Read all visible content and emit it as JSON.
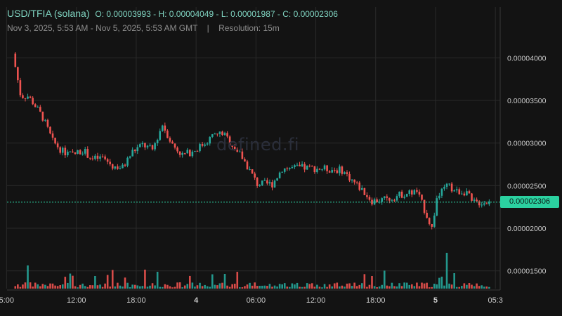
{
  "header": {
    "symbol": "USD/TFIA (solana)",
    "ohlc": "O: 0.00003993 - H: 0.00004049 - L: 0.00001987 - C: 0.00002306",
    "range": "Nov 3, 2025, 5:53 AM - Nov 5, 2025, 5:53 AM GMT",
    "separator": "|",
    "resolution": "Resolution: 15m"
  },
  "watermark": "defined.fi",
  "last_price_label": "0.00002306",
  "colors": {
    "up": "#26a69a",
    "down": "#ef5350",
    "background": "#131313",
    "grid": "#2a2a2a",
    "last_price": "#2bd1a0"
  },
  "chart_data": {
    "type": "candlestick",
    "title": "USD/TFIA (solana)",
    "resolution": "15m",
    "y_ticks": [
      "0.00004000",
      "0.00003500",
      "0.00003000",
      "0.00002500",
      "0.00002000",
      "0.00001500"
    ],
    "y_tick_values": [
      4e-05,
      3.5e-05,
      3e-05,
      2.5e-05,
      2e-05,
      1.5e-05
    ],
    "x_ticks": [
      "5:00",
      "12:00",
      "18:00",
      "4",
      "06:00",
      "12:00",
      "18:00",
      "5",
      "05:3"
    ],
    "x_tick_hours": [
      -0.88,
      6.12,
      12.12,
      18.12,
      24.12,
      30.12,
      36.12,
      42.12,
      48.12
    ],
    "ylim": [
      1.3e-05,
      4.25e-05
    ],
    "xlim_hours": [
      -0.83,
      48.6
    ],
    "last_price": 2.306e-05,
    "grid": true,
    "price_path": [
      [
        0,
        4.049e-05
      ],
      [
        0.8,
        3.55e-05
      ],
      [
        1.5,
        3.55e-05
      ],
      [
        2.0,
        3.48e-05
      ],
      [
        3.0,
        3.3e-05
      ],
      [
        4.0,
        3.02e-05
      ],
      [
        5.0,
        2.9e-05
      ],
      [
        6.0,
        2.86e-05
      ],
      [
        7.0,
        2.92e-05
      ],
      [
        8.0,
        2.81e-05
      ],
      [
        9.0,
        2.83e-05
      ],
      [
        10.0,
        2.73e-05
      ],
      [
        11.0,
        2.71e-05
      ],
      [
        12.0,
        2.9e-05
      ],
      [
        13.0,
        2.98e-05
      ],
      [
        14.0,
        2.92e-05
      ],
      [
        15.0,
        3.22e-05
      ],
      [
        16.0,
        2.98e-05
      ],
      [
        17.0,
        2.86e-05
      ],
      [
        18.0,
        2.9e-05
      ],
      [
        19.0,
        2.98e-05
      ],
      [
        20.0,
        3.08e-05
      ],
      [
        21.0,
        3.12e-05
      ],
      [
        22.0,
        2.98e-05
      ],
      [
        23.0,
        2.83e-05
      ],
      [
        24.5,
        2.52e-05
      ],
      [
        26.0,
        2.52e-05
      ],
      [
        27.0,
        2.7e-05
      ],
      [
        29.0,
        2.71e-05
      ],
      [
        31.0,
        2.7e-05
      ],
      [
        33.0,
        2.68e-05
      ],
      [
        35.0,
        2.45e-05
      ],
      [
        36.0,
        2.32e-05
      ],
      [
        37.5,
        2.34e-05
      ],
      [
        39.0,
        2.4e-05
      ],
      [
        40.5,
        2.43e-05
      ],
      [
        41.5,
        2.15e-05
      ],
      [
        42.0,
        2e-05
      ],
      [
        42.5,
        2.35e-05
      ],
      [
        43.5,
        2.5e-05
      ],
      [
        44.5,
        2.43e-05
      ],
      [
        45.5,
        2.43e-05
      ],
      [
        46.0,
        2.3e-05
      ],
      [
        47.5,
        2.306e-05
      ]
    ],
    "volume_spikes": [
      [
        1.2,
        0.55
      ],
      [
        8.0,
        0.3
      ],
      [
        13.0,
        0.45
      ],
      [
        14.2,
        0.4
      ],
      [
        21.0,
        0.35
      ],
      [
        35.8,
        0.3
      ],
      [
        42.4,
        1.0
      ],
      [
        42.8,
        0.95
      ],
      [
        43.2,
        0.85
      ]
    ]
  }
}
